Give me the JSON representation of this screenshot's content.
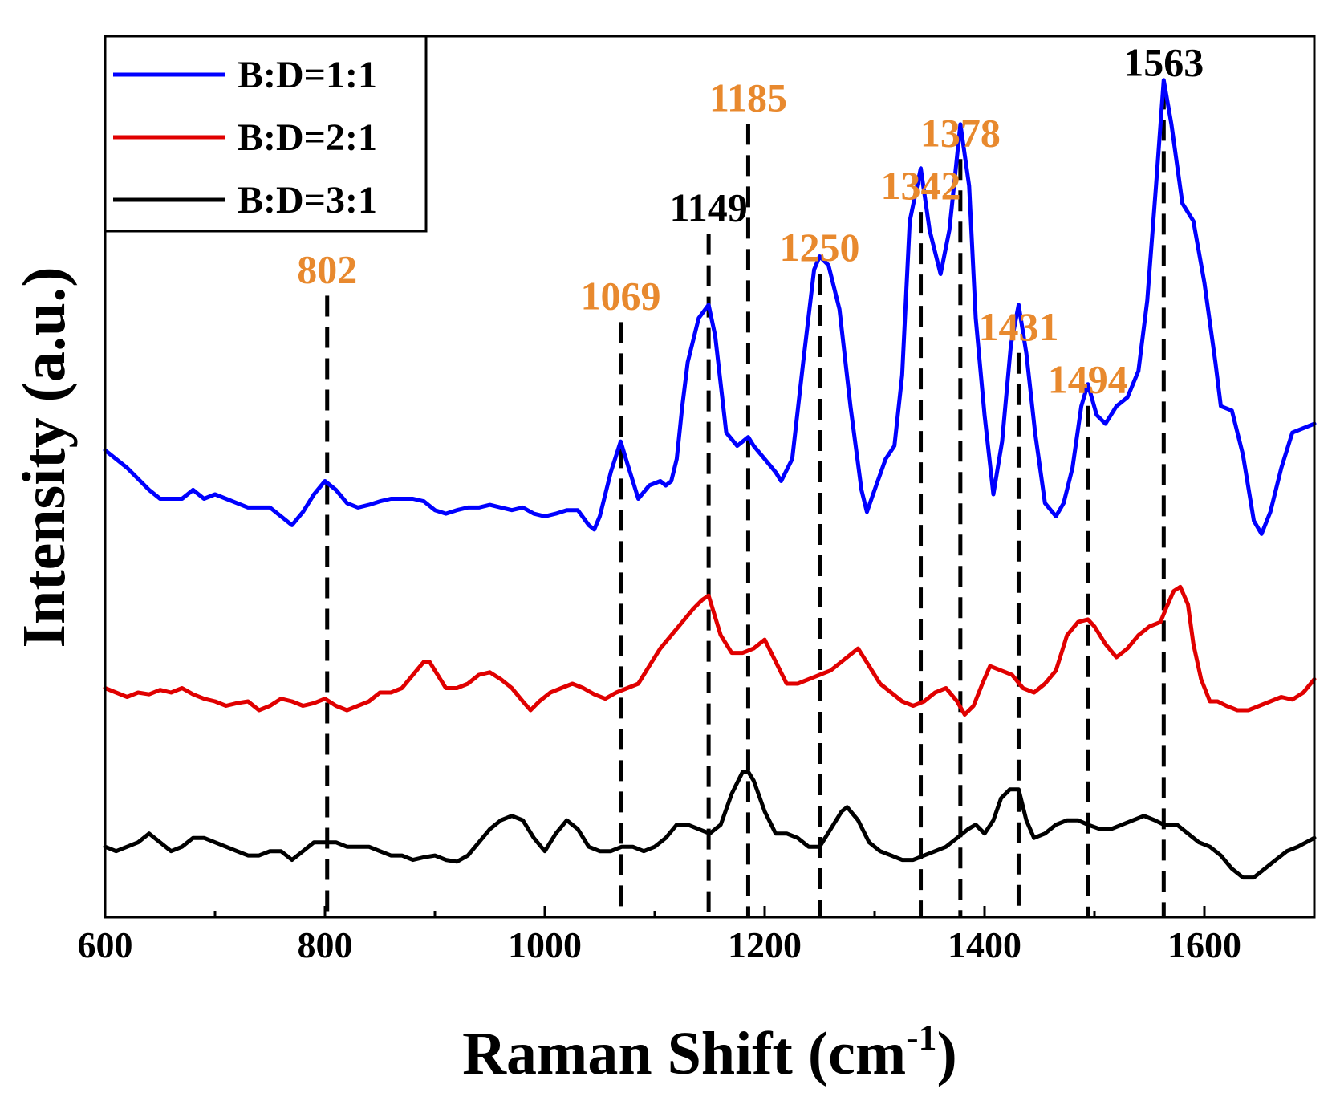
{
  "chart_data": {
    "type": "line",
    "xlabel_main": "Raman Shift (cm",
    "xlabel_sup": "-1",
    "xlabel_close": ")",
    "ylabel": "Intensity (a.u.)",
    "xlim": [
      600,
      1700
    ],
    "ylim": [
      0,
      100
    ],
    "xticks": [
      600,
      800,
      1000,
      1200,
      1400,
      1600
    ],
    "xtick_labels": [
      "600",
      "800",
      "1000",
      "1200",
      "1400",
      "1600"
    ],
    "yticks_shown": false,
    "legend_position": "top-left",
    "series": [
      {
        "name": "B:D=1:1",
        "color": "#0000ff",
        "x": [
          600,
          620,
          640,
          650,
          660,
          670,
          680,
          690,
          700,
          710,
          720,
          730,
          740,
          750,
          760,
          770,
          780,
          790,
          800,
          810,
          820,
          830,
          840,
          850,
          860,
          870,
          880,
          890,
          900,
          910,
          920,
          930,
          940,
          950,
          960,
          970,
          980,
          990,
          1000,
          1010,
          1020,
          1030,
          1040,
          1045,
          1050,
          1060,
          1069,
          1075,
          1085,
          1095,
          1105,
          1110,
          1115,
          1120,
          1125,
          1130,
          1140,
          1149,
          1155,
          1165,
          1175,
          1185,
          1190,
          1200,
          1210,
          1215,
          1225,
          1235,
          1245,
          1250,
          1258,
          1268,
          1278,
          1288,
          1293,
          1300,
          1310,
          1318,
          1325,
          1332,
          1342,
          1350,
          1360,
          1368,
          1378,
          1386,
          1392,
          1400,
          1408,
          1416,
          1424,
          1431,
          1438,
          1446,
          1455,
          1465,
          1472,
          1480,
          1488,
          1494,
          1502,
          1510,
          1520,
          1530,
          1540,
          1548,
          1556,
          1563,
          1570,
          1580,
          1590,
          1600,
          1610,
          1615,
          1625,
          1635,
          1645,
          1652,
          1660,
          1670,
          1680,
          1690,
          1700
        ],
        "y": [
          53,
          51,
          48.5,
          47.5,
          47.5,
          47.5,
          48.5,
          47.5,
          48,
          47.5,
          47,
          46.5,
          46.5,
          46.5,
          45.5,
          44.5,
          46,
          48,
          49.5,
          48.5,
          47,
          46.5,
          46.8,
          47.2,
          47.5,
          47.5,
          47.5,
          47.2,
          46.2,
          45.8,
          46.2,
          46.5,
          46.5,
          46.8,
          46.5,
          46.2,
          46.5,
          45.8,
          45.5,
          45.8,
          46.2,
          46.2,
          44.5,
          44,
          45.5,
          50.5,
          54,
          51.5,
          47.5,
          49,
          49.5,
          49,
          49.5,
          52,
          58,
          63,
          68,
          69.5,
          66,
          55,
          53.5,
          54.5,
          53.5,
          52,
          50.5,
          49.5,
          52,
          63,
          73.5,
          75,
          74,
          69,
          58,
          48.5,
          46,
          48.5,
          52,
          53.5,
          61.5,
          79,
          85,
          78,
          73,
          78,
          90,
          83,
          68,
          57,
          48,
          54,
          65,
          69.5,
          64,
          55,
          47,
          45.5,
          47,
          51,
          58,
          60.5,
          57,
          56,
          58,
          59,
          62,
          70,
          83,
          95,
          90,
          81,
          79,
          72,
          63,
          58,
          57.5,
          52.5,
          45,
          43.5,
          46,
          51,
          55,
          55.5,
          56
        ]
      },
      {
        "name": "B:D=2:1",
        "color": "#e00000",
        "x": [
          600,
          610,
          620,
          630,
          640,
          650,
          660,
          670,
          680,
          690,
          700,
          710,
          720,
          730,
          740,
          750,
          760,
          770,
          780,
          790,
          800,
          810,
          820,
          830,
          840,
          850,
          860,
          870,
          880,
          890,
          895,
          900,
          910,
          920,
          930,
          940,
          950,
          960,
          970,
          980,
          987,
          995,
          1005,
          1015,
          1025,
          1035,
          1045,
          1055,
          1065,
          1075,
          1085,
          1095,
          1105,
          1115,
          1125,
          1135,
          1143,
          1149,
          1160,
          1170,
          1180,
          1190,
          1200,
          1210,
          1220,
          1230,
          1240,
          1250,
          1260,
          1270,
          1280,
          1285,
          1295,
          1305,
          1315,
          1325,
          1335,
          1345,
          1355,
          1365,
          1375,
          1382,
          1390,
          1398,
          1405,
          1415,
          1425,
          1435,
          1445,
          1455,
          1465,
          1475,
          1485,
          1494,
          1500,
          1510,
          1520,
          1530,
          1540,
          1550,
          1560,
          1565,
          1572,
          1578,
          1585,
          1590,
          1597,
          1605,
          1612,
          1620,
          1630,
          1640,
          1650,
          1660,
          1670,
          1680,
          1690,
          1700
        ],
        "y": [
          26,
          25.5,
          25,
          25.5,
          25.3,
          25.8,
          25.5,
          26,
          25.3,
          24.8,
          24.5,
          24,
          24.3,
          24.5,
          23.5,
          24,
          24.8,
          24.5,
          24,
          24.3,
          24.8,
          24,
          23.5,
          24,
          24.5,
          25.5,
          25.5,
          26,
          27.5,
          29,
          29,
          28,
          26,
          26,
          26.5,
          27.5,
          27.8,
          27,
          26,
          24.5,
          23.5,
          24.5,
          25.5,
          26,
          26.5,
          26,
          25.3,
          24.8,
          25.5,
          26,
          26.5,
          28.5,
          30.5,
          32,
          33.5,
          35,
          36,
          36.5,
          32,
          30,
          30,
          30.5,
          31.5,
          29,
          26.5,
          26.5,
          27,
          27.5,
          28,
          29,
          30,
          30.5,
          28.5,
          26.5,
          25.5,
          24.5,
          24,
          24.5,
          25.5,
          26,
          24.5,
          23,
          24,
          26.5,
          28.5,
          28,
          27.5,
          26,
          25.5,
          26.5,
          28,
          32,
          33.5,
          33.8,
          33,
          31,
          29.5,
          30.5,
          32,
          33,
          33.5,
          35,
          37,
          37.5,
          35.5,
          31,
          27,
          24.5,
          24.5,
          24,
          23.5,
          23.5,
          24,
          24.5,
          25,
          24.7,
          25.5,
          27
        ]
      },
      {
        "name": "B:D=3:1",
        "color": "#000000",
        "x": [
          600,
          610,
          620,
          630,
          640,
          650,
          660,
          670,
          680,
          690,
          700,
          710,
          720,
          730,
          740,
          750,
          760,
          770,
          780,
          790,
          800,
          810,
          820,
          830,
          840,
          850,
          860,
          870,
          880,
          890,
          900,
          910,
          920,
          930,
          940,
          950,
          960,
          970,
          980,
          990,
          1000,
          1010,
          1020,
          1030,
          1040,
          1050,
          1060,
          1070,
          1080,
          1090,
          1100,
          1110,
          1120,
          1130,
          1140,
          1150,
          1160,
          1170,
          1180,
          1185,
          1190,
          1200,
          1210,
          1220,
          1230,
          1240,
          1250,
          1260,
          1270,
          1275,
          1285,
          1295,
          1305,
          1315,
          1325,
          1335,
          1345,
          1355,
          1365,
          1375,
          1385,
          1392,
          1400,
          1408,
          1415,
          1423,
          1431,
          1438,
          1445,
          1455,
          1465,
          1475,
          1485,
          1494,
          1505,
          1515,
          1525,
          1535,
          1545,
          1555,
          1563,
          1575,
          1585,
          1595,
          1605,
          1615,
          1625,
          1635,
          1645,
          1655,
          1665,
          1675,
          1685,
          1700
        ],
        "y": [
          8,
          7.5,
          8,
          8.5,
          9.5,
          8.5,
          7.5,
          8,
          9,
          9,
          8.5,
          8,
          7.5,
          7,
          7,
          7.5,
          7.5,
          6.5,
          7.5,
          8.5,
          8.5,
          8.5,
          8,
          8,
          8,
          7.5,
          7,
          7,
          6.5,
          6.8,
          7,
          6.5,
          6.3,
          7,
          8.5,
          10,
          11,
          11.5,
          11,
          9,
          7.5,
          9.5,
          11,
          10,
          8,
          7.5,
          7.5,
          8,
          8,
          7.5,
          8,
          9,
          10.5,
          10.5,
          10,
          9.5,
          10.5,
          14,
          16.5,
          16.5,
          15.5,
          12,
          9.5,
          9.5,
          9,
          8,
          8,
          10,
          12,
          12.5,
          11,
          8.5,
          7.5,
          7,
          6.5,
          6.5,
          7,
          7.5,
          8,
          9,
          10,
          10.5,
          9.5,
          11,
          13.5,
          14.5,
          14.5,
          11,
          9,
          9.5,
          10.5,
          11,
          11,
          10.5,
          10,
          10,
          10.5,
          11,
          11.5,
          11,
          10.5,
          10.5,
          9.5,
          8.5,
          8,
          7,
          5.5,
          4.5,
          4.5,
          5.5,
          6.5,
          7.5,
          8,
          9
        ]
      }
    ],
    "peak_markers": [
      {
        "x": 802,
        "label": "802",
        "color": "#e8892e",
        "label_y": 72
      },
      {
        "x": 1069,
        "label": "1069",
        "color": "#e8892e",
        "label_y": 69
      },
      {
        "x": 1149,
        "label": "1149",
        "color": "#000000",
        "label_y": 79
      },
      {
        "x": 1185,
        "label": "1185",
        "color": "#e8892e",
        "label_y": 91.5
      },
      {
        "x": 1250,
        "label": "1250",
        "color": "#e8892e",
        "label_y": 74.5
      },
      {
        "x": 1342,
        "label": "1342",
        "color": "#e8892e",
        "label_y": 81.5
      },
      {
        "x": 1378,
        "label": "1378",
        "color": "#e8892e",
        "label_y": 87.5
      },
      {
        "x": 1431,
        "label": "1431",
        "color": "#e8892e",
        "label_y": 65.5
      },
      {
        "x": 1494,
        "label": "1494",
        "color": "#e8892e",
        "label_y": 59.5
      },
      {
        "x": 1563,
        "label": "1563",
        "color": "#000000",
        "label_y": 95.5
      }
    ]
  }
}
